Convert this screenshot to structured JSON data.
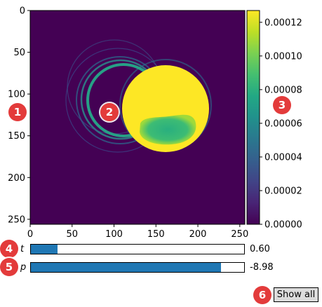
{
  "chart_data": {
    "type": "heatmap",
    "x_ticks": [
      "0",
      "50",
      "100",
      "150",
      "200",
      "250"
    ],
    "y_ticks": [
      "0",
      "50",
      "100",
      "150",
      "200",
      "250"
    ],
    "xlim": [
      0,
      256
    ],
    "ylim": [
      256,
      0
    ],
    "colorbar": {
      "colormap": "viridis",
      "range": [
        0,
        0.000127
      ],
      "ticks": [
        "0.00000",
        "0.00002",
        "0.00004",
        "0.00006",
        "0.00008",
        "0.00010",
        "0.00012"
      ]
    },
    "background_color": "#440154",
    "main_disk_color": "#fde725"
  },
  "sliders": [
    {
      "label": "t",
      "value_text": "0.60",
      "fraction": 0.125
    },
    {
      "label": "p",
      "value_text": "-8.98",
      "fraction": 0.89
    }
  ],
  "show_all_button": {
    "label": "Show all"
  },
  "markers": [
    "1",
    "2",
    "3",
    "4",
    "5",
    "6"
  ],
  "accent_color": "#1f77b4",
  "marker_color": "#e33b3b"
}
